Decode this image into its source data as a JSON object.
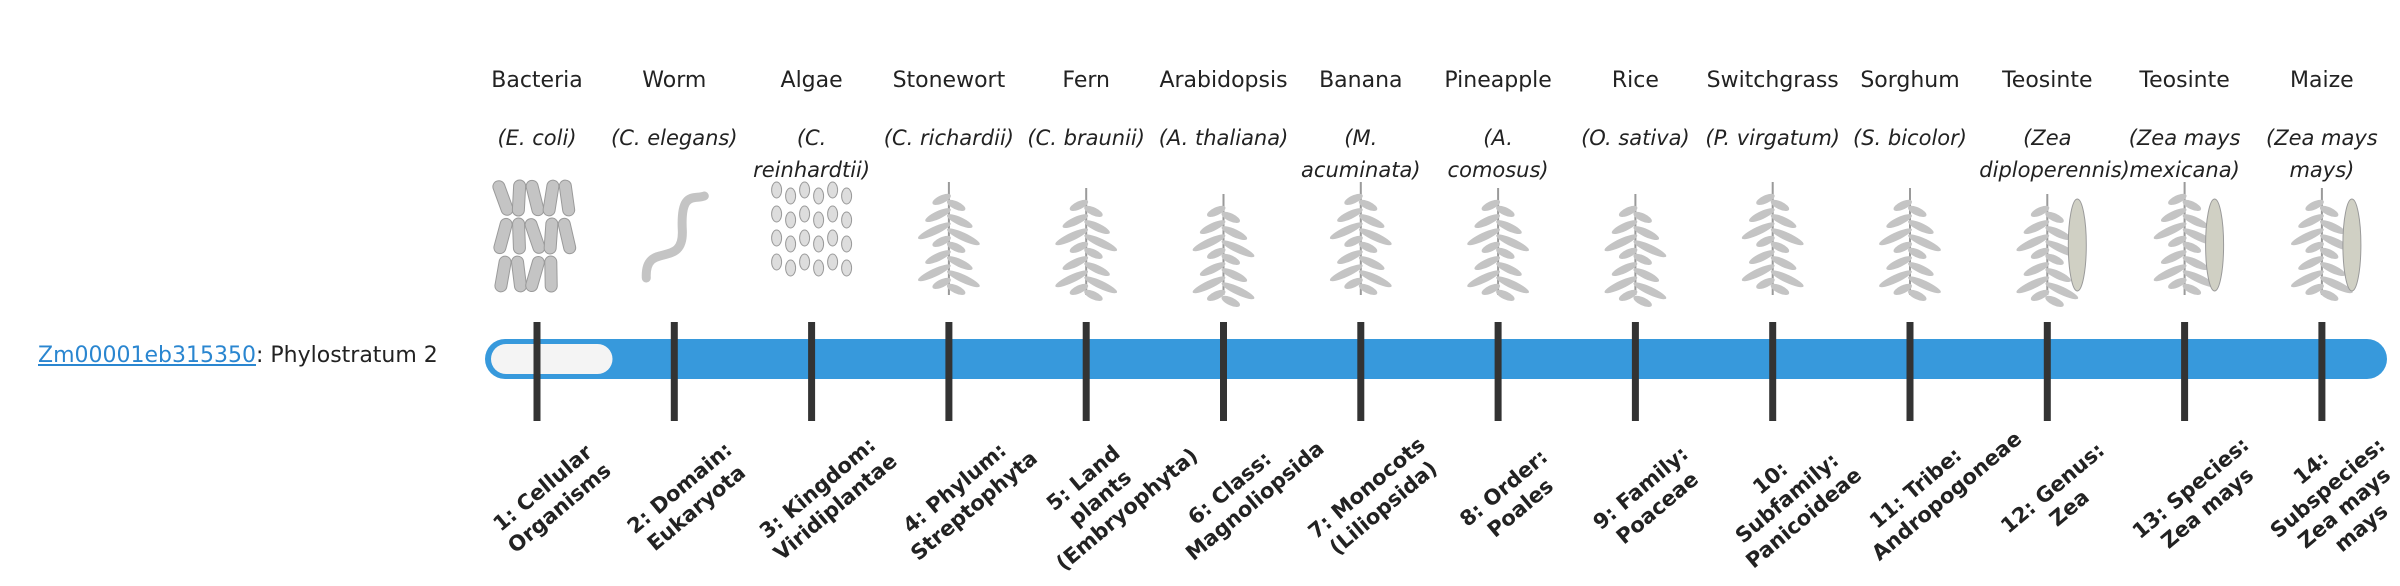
{
  "gene": {
    "id": "Zm00001eb315350",
    "label": ": Phylostratum 2"
  },
  "strata": [
    {
      "name": "Bacteria",
      "species": "(E. coli)",
      "rank": "1: Cellular Organisms"
    },
    {
      "name": "Worm",
      "species": "(C. elegans)",
      "rank": "2: Domain: Eukaryota"
    },
    {
      "name": "Algae",
      "species": "(C. reinhardtii)",
      "rank": "3: Kingdom: Viridiplantae"
    },
    {
      "name": "Stonewort",
      "species": "(C. richardii)",
      "rank": "4: Phylum: Streptophyta"
    },
    {
      "name": "Fern",
      "species": "(C. braunii)",
      "rank": "5: Land plants (Embryophyta)"
    },
    {
      "name": "Arabidopsis",
      "species": "(A. thaliana)",
      "rank": "6: Class: Magnoliopsida"
    },
    {
      "name": "Banana",
      "species": "(M. acuminata)",
      "rank": "7: Monocots (Liliopsida)"
    },
    {
      "name": "Pineapple",
      "species": "(A. comosus)",
      "rank": "8: Order: Poales"
    },
    {
      "name": "Rice",
      "species": "(O. sativa)",
      "rank": "9: Family: Poaceae"
    },
    {
      "name": "Switchgrass",
      "species": "(P. virgatum)",
      "rank": "10: Subfamily: Panicoideae"
    },
    {
      "name": "Sorghum",
      "species": "(S. bicolor)",
      "rank": "11: Tribe: Andropogoneae"
    },
    {
      "name": "Teosinte",
      "species": "(Zea diploperennis)",
      "rank": "12: Genus: Zea"
    },
    {
      "name": "Teosinte",
      "species": "(Zea mays mexicana)",
      "rank": "13: Species: Zea mays"
    },
    {
      "name": "Maize",
      "species": "(Zea mays mays)",
      "rank": "14: Subspecies: Zea mays mays"
    }
  ]
}
